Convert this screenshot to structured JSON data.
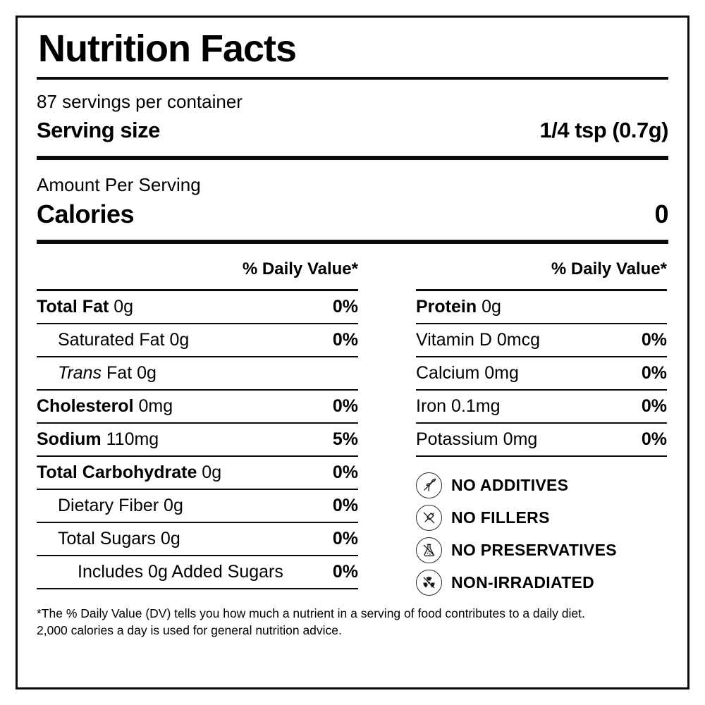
{
  "label": {
    "title": "Nutrition Facts",
    "servings_per_container": "87 servings per container",
    "serving_size_label": "Serving size",
    "serving_size_value": "1/4 tsp (0.7g)",
    "amount_per_serving": "Amount Per Serving",
    "calories_label": "Calories",
    "calories_value": "0"
  },
  "columns": {
    "left": {
      "dv_header": "% Daily Value*",
      "rows": [
        {
          "name": "Total Fat",
          "amount": "0g",
          "dv": "0%",
          "name_style": "bold",
          "indent": 0
        },
        {
          "name": "Saturated Fat",
          "amount": "0g",
          "dv": "0%",
          "name_style": "regular",
          "indent": 1
        },
        {
          "name": "Trans",
          "amount": "Fat 0g",
          "dv": "",
          "name_style": "italic",
          "indent": 1
        },
        {
          "name": "Cholesterol",
          "amount": "0mg",
          "dv": "0%",
          "name_style": "bold",
          "indent": 0
        },
        {
          "name": "Sodium",
          "amount": "110mg",
          "dv": "5%",
          "name_style": "bold",
          "indent": 0
        },
        {
          "name": "Total Carbohydrate",
          "amount": "0g",
          "dv": "0%",
          "name_style": "bold",
          "indent": 0
        },
        {
          "name": "Dietary Fiber",
          "amount": "0g",
          "dv": "0%",
          "name_style": "regular",
          "indent": 1
        },
        {
          "name": "Total Sugars",
          "amount": "0g",
          "dv": "0%",
          "name_style": "regular",
          "indent": 1
        },
        {
          "name": "Includes 0g Added Sugars",
          "amount": "",
          "dv": "0%",
          "name_style": "regular",
          "indent": 2
        }
      ]
    },
    "right": {
      "dv_header": "% Daily Value*",
      "rows": [
        {
          "name": "Protein",
          "amount": "0g",
          "dv": "",
          "name_style": "bold",
          "indent": 0
        },
        {
          "name": "Vitamin D",
          "amount": "0mcg",
          "dv": "0%",
          "name_style": "regular",
          "indent": 0
        },
        {
          "name": "Calcium",
          "amount": "0mg",
          "dv": "0%",
          "name_style": "regular",
          "indent": 0
        },
        {
          "name": "Iron",
          "amount": "0.1mg",
          "dv": "0%",
          "name_style": "regular",
          "indent": 0
        },
        {
          "name": "Potassium",
          "amount": "0mg",
          "dv": "0%",
          "name_style": "regular",
          "indent": 0
        }
      ]
    }
  },
  "badges": [
    {
      "icon": "no-additives-leaf-icon",
      "label": "NO ADDITIVES"
    },
    {
      "icon": "no-fillers-syringe-icon",
      "label": "NO FILLERS"
    },
    {
      "icon": "no-preservatives-flask-icon",
      "label": "NO PRESERVATIVES"
    },
    {
      "icon": "non-irradiated-radiation-icon",
      "label": "NON-IRRADIATED"
    }
  ],
  "footnote": {
    "line1": "*The % Daily Value (DV) tells you how much a nutrient in a serving of food contributes to a daily diet.",
    "line2": "2,000 calories a day is used for general nutrition advice."
  },
  "colors": {
    "text": "#000000",
    "background": "#ffffff",
    "rule": "#0b0b0b"
  }
}
